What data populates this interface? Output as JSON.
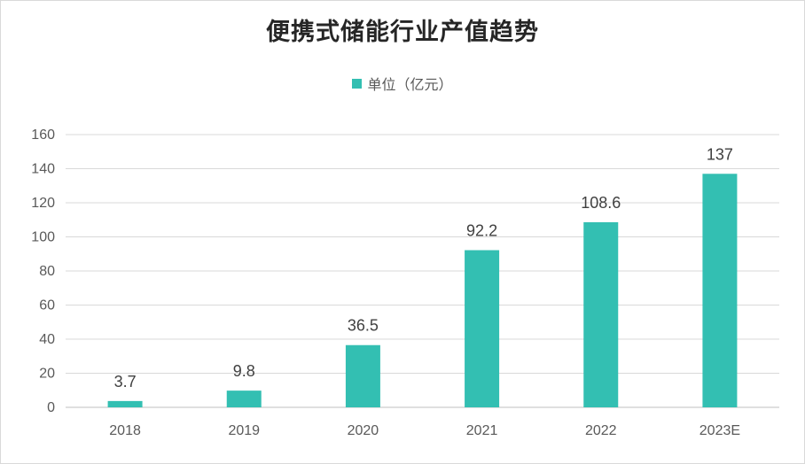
{
  "chart_data": {
    "type": "bar",
    "title": "便携式储能行业产值趋势",
    "categories": [
      "2018",
      "2019",
      "2020",
      "2021",
      "2022",
      "2023E"
    ],
    "series": [
      {
        "name": "单位（亿元）",
        "values": [
          3.7,
          9.8,
          36.5,
          92.2,
          108.6,
          137
        ],
        "labels": [
          "3.7",
          "9.8",
          "36.5",
          "92.2",
          "108.6",
          "137"
        ]
      }
    ],
    "xlabel": "",
    "ylabel": "",
    "ylim": [
      0,
      160
    ],
    "yticks": [
      "0",
      "20",
      "40",
      "60",
      "80",
      "100",
      "120",
      "140",
      "160"
    ],
    "grid": true,
    "legend_position": "top",
    "colors": {
      "bar": "#33bfb2",
      "grid": "#d9d9d9",
      "axis": "#bfbfbf"
    }
  }
}
